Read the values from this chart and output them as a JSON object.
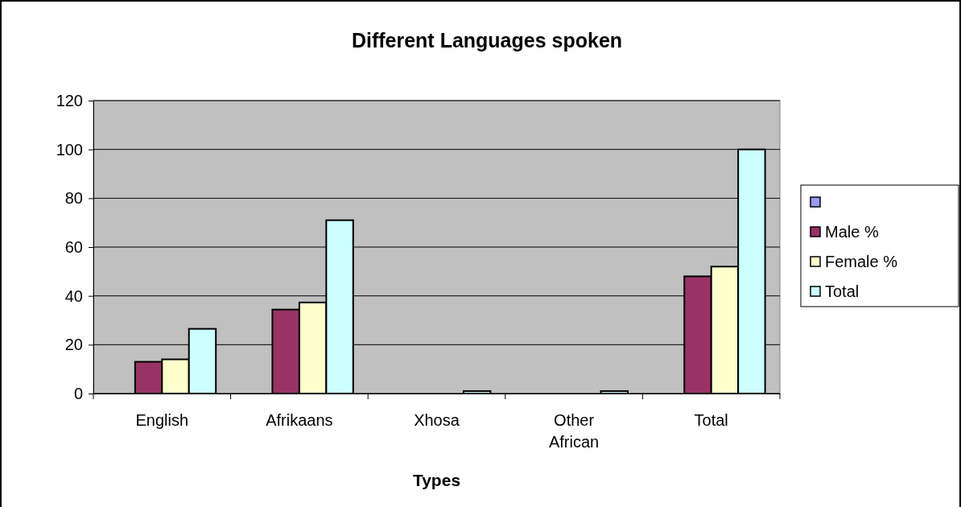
{
  "chart_data": {
    "type": "bar",
    "title": "Different Languages spoken",
    "xlabel": "Types",
    "categories": [
      "English",
      "Afrikaans",
      "Xhosa",
      "Other African",
      "Total"
    ],
    "series": [
      {
        "color": "#9999ff",
        "values": [
          null,
          null,
          null,
          null,
          null
        ]
      },
      {
        "name": "Male %",
        "color": "#993366",
        "values": [
          13,
          34.4,
          null,
          null,
          48
        ]
      },
      {
        "name": "Female %",
        "color": "#ffffcc",
        "values": [
          14,
          37.3,
          null,
          null,
          52
        ]
      },
      {
        "name": "Total",
        "color": "#ccffff",
        "values": [
          26.5,
          71,
          1,
          1,
          100
        ]
      }
    ],
    "ylim": [
      0,
      120
    ],
    "yticks": [
      0,
      20,
      40,
      60,
      80,
      100,
      120
    ],
    "grid": "y",
    "legend": "right"
  }
}
